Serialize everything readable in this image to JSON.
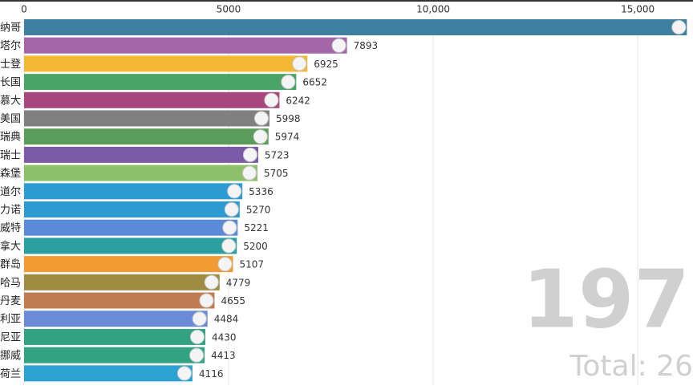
{
  "chart_data": {
    "type": "bar",
    "orientation": "horizontal",
    "categories": [
      "纳哥",
      "塔尔",
      "士登",
      "长国",
      "慕大",
      "美国",
      "瑞典",
      "瑞士",
      "森堡",
      "道尔",
      "力诺",
      "威特",
      "拿大",
      "群岛",
      "哈马",
      "丹麦",
      "利亚",
      "尼亚",
      "挪威",
      "荷兰"
    ],
    "values": [
      16200,
      7893,
      6925,
      6652,
      6242,
      5998,
      5974,
      5723,
      5705,
      5336,
      5270,
      5221,
      5200,
      5107,
      4779,
      4655,
      4484,
      4430,
      4413,
      4116
    ],
    "colors": [
      "#3f80a0",
      "#a466a8",
      "#f2b833",
      "#4aa468",
      "#a8467e",
      "#808080",
      "#5b9b5b",
      "#7b5ba8",
      "#8cc06b",
      "#2b9bd2",
      "#2b9bd2",
      "#5b8bd8",
      "#2ba0a0",
      "#f29b33",
      "#a08b42",
      "#c07b52",
      "#6b8bd8",
      "#32a282",
      "#32a282",
      "#2ba2d2"
    ],
    "xlim": [
      0,
      16350
    ],
    "xticks": [
      0,
      5000,
      {
        "value": 10000,
        "label": "10,000"
      },
      {
        "value": 15000,
        "label": "15,000"
      }
    ],
    "grid": true,
    "year": "197",
    "total": "Total: 26"
  }
}
